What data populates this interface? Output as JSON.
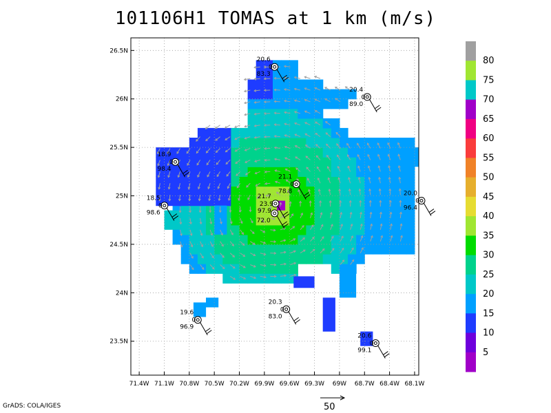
{
  "title": "101106H1 TOMAS at 1 km (m/s)",
  "footer": "GrADS: COLA/IGES",
  "axes": {
    "lon_ticks": [
      "71.4W",
      "71.1W",
      "70.8W",
      "70.5W",
      "70.2W",
      "69.9W",
      "69.6W",
      "69.3W",
      "69W",
      "68.7W",
      "68.4W",
      "68.1W"
    ],
    "lat_ticks": [
      "26.5N",
      "26N",
      "25.5N",
      "25N",
      "24.5N",
      "24N",
      "23.5N"
    ],
    "lon_range": [
      -71.5,
      -68.05
    ],
    "lat_range": [
      23.15,
      26.63
    ]
  },
  "colorbar": {
    "labels": [
      "5",
      "10",
      "15",
      "20",
      "25",
      "30",
      "35",
      "40",
      "45",
      "50",
      "55",
      "60",
      "65",
      "70",
      "75",
      "80"
    ],
    "colors": [
      "#a000c8",
      "#6e00dc",
      "#1e3cff",
      "#00a0ff",
      "#00c8c8",
      "#00d28c",
      "#00dc00",
      "#a0e632",
      "#e6dc32",
      "#e6af2d",
      "#f08228",
      "#fa3c3c",
      "#f00082",
      "#a000c8",
      "#00c8c8",
      "#a0e632",
      "#a0a0a0"
    ]
  },
  "wind_scale_label": "50",
  "stations": [
    {
      "lon": -69.86,
      "lat": 26.33,
      "top": "20.6",
      "mid": "0",
      "bot": "83.3"
    },
    {
      "lon": -68.75,
      "lat": 26.02,
      "top": "20.4",
      "mid": "0",
      "bot": "89.0"
    },
    {
      "lon": -71.05,
      "lat": 25.35,
      "top": "18.9",
      "mid": "0",
      "bot": "98.4"
    },
    {
      "lon": -71.18,
      "lat": 24.9,
      "top": "18.5",
      "mid": "0",
      "bot": "98.6"
    },
    {
      "lon": -69.6,
      "lat": 25.12,
      "top": "21.1",
      "mid": "0",
      "bot": "78.8"
    },
    {
      "lon": -69.85,
      "lat": 24.92,
      "top": "21.7",
      "mid": "23.9",
      "bot": "97.9"
    },
    {
      "lon": -69.86,
      "lat": 24.82,
      "top": "",
      "mid": "",
      "bot": "72.0"
    },
    {
      "lon": -68.1,
      "lat": 24.95,
      "top": "20.0",
      "mid": "0",
      "bot": "96.4"
    },
    {
      "lon": -70.78,
      "lat": 23.72,
      "top": "19.6",
      "mid": "0",
      "bot": "96.9"
    },
    {
      "lon": -69.72,
      "lat": 23.83,
      "top": "20.3",
      "mid": "0",
      "bot": "83.0"
    },
    {
      "lon": -68.65,
      "lat": 23.48,
      "top": "20.6",
      "mid": "0",
      "bot": "99.1"
    }
  ]
}
